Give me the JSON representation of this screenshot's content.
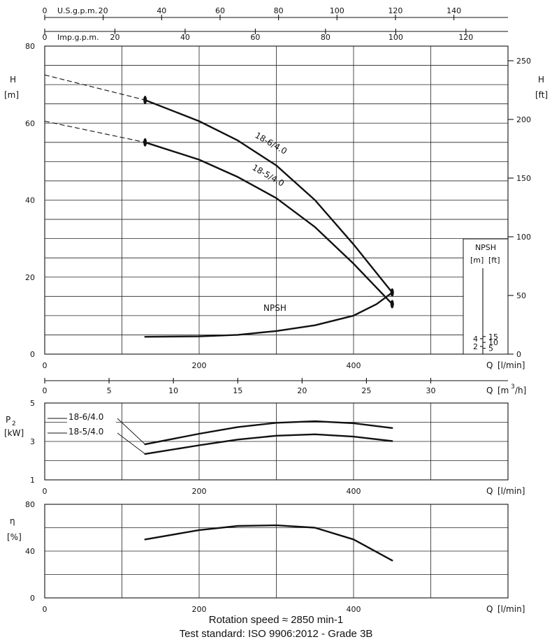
{
  "chart_data": [
    {
      "type": "line",
      "panel": "head",
      "top_axis_usgpm": {
        "label": "U.S.g.p.m.",
        "ticks": [
          0,
          20,
          40,
          60,
          80,
          100,
          120,
          140
        ]
      },
      "top_axis_impgpm": {
        "label": "Imp.g.p.m.",
        "ticks": [
          0,
          20,
          40,
          60,
          80,
          100,
          120
        ]
      },
      "ylabel": "H",
      "yunit": "[m]",
      "ylim": [
        0,
        80
      ],
      "yticks": [
        0,
        20,
        40,
        60,
        80
      ],
      "y2label": "H",
      "y2unit": "[ft]",
      "y2ticks": [
        0,
        50,
        100,
        150,
        200,
        250
      ],
      "xlabel": "Q",
      "xunit": "[l/min]",
      "xlim": [
        0,
        600
      ],
      "xticks": [
        0,
        200,
        400
      ],
      "grid": true,
      "series": [
        {
          "name": "18-6/4.0",
          "extrapolated": [
            [
              0,
              72.5
            ],
            [
              130,
              66
            ]
          ],
          "x": [
            130,
            200,
            250,
            300,
            350,
            400,
            450
          ],
          "y": [
            66,
            60.5,
            55.5,
            49,
            40,
            28.5,
            16
          ]
        },
        {
          "name": "18-5/4.0",
          "extrapolated": [
            [
              0,
              60.5
            ],
            [
              130,
              55
            ]
          ],
          "x": [
            130,
            200,
            250,
            300,
            350,
            400,
            450
          ],
          "y": [
            55,
            50.5,
            46,
            40.5,
            33,
            23.5,
            13
          ]
        },
        {
          "name": "NPSH",
          "x": [
            130,
            200,
            250,
            300,
            350,
            400,
            430,
            450
          ],
          "y": [
            4.5,
            4.6,
            5,
            6,
            7.5,
            10,
            13,
            16
          ]
        }
      ],
      "npsh_inset": {
        "label": "NPSH",
        "unit_m": "[m]",
        "unit_ft": "[ft]",
        "m_ticks": [
          2,
          4
        ],
        "ft_ticks": [
          5,
          10,
          15
        ]
      }
    },
    {
      "type": "line",
      "panel": "flow_m3h_axis",
      "xlabel": "Q",
      "xunit_prefix": "[m",
      "xunit_sup": "3",
      "xunit_suffix": "/h]",
      "ticks": [
        0,
        5,
        10,
        15,
        20,
        25,
        30
      ]
    },
    {
      "type": "line",
      "panel": "power",
      "ylabel": "P",
      "ylabel_sub": "2",
      "yunit": "[kW]",
      "ylim": [
        1,
        5
      ],
      "yticks": [
        1,
        3,
        5
      ],
      "xlabel": "Q",
      "xunit": "[l/min]",
      "xticks": [
        0,
        200,
        400
      ],
      "grid": true,
      "series": [
        {
          "name": "18-6/4.0",
          "x": [
            130,
            200,
            250,
            300,
            350,
            400,
            450
          ],
          "y": [
            2.85,
            3.4,
            3.75,
            3.97,
            4.05,
            3.95,
            3.7
          ]
        },
        {
          "name": "18-5/4.0",
          "x": [
            130,
            200,
            250,
            300,
            350,
            400,
            450
          ],
          "y": [
            2.35,
            2.8,
            3.1,
            3.3,
            3.37,
            3.25,
            3.02
          ]
        }
      ]
    },
    {
      "type": "line",
      "panel": "efficiency",
      "ylabel": "η",
      "yunit": "[%]",
      "ylim": [
        0,
        80
      ],
      "yticks": [
        0,
        40,
        80
      ],
      "xlabel": "Q",
      "xunit": "[l/min]",
      "xticks": [
        0,
        200,
        400
      ],
      "grid": true,
      "series": [
        {
          "name": "",
          "x": [
            130,
            200,
            250,
            300,
            350,
            400,
            450
          ],
          "y": [
            50,
            58,
            61.5,
            62,
            60,
            50,
            32
          ]
        }
      ]
    }
  ],
  "footer": {
    "line1": "Rotation speed ≈ 2850 min-1",
    "line2": "Test standard: ISO 9906:2012 - Grade 3B"
  }
}
